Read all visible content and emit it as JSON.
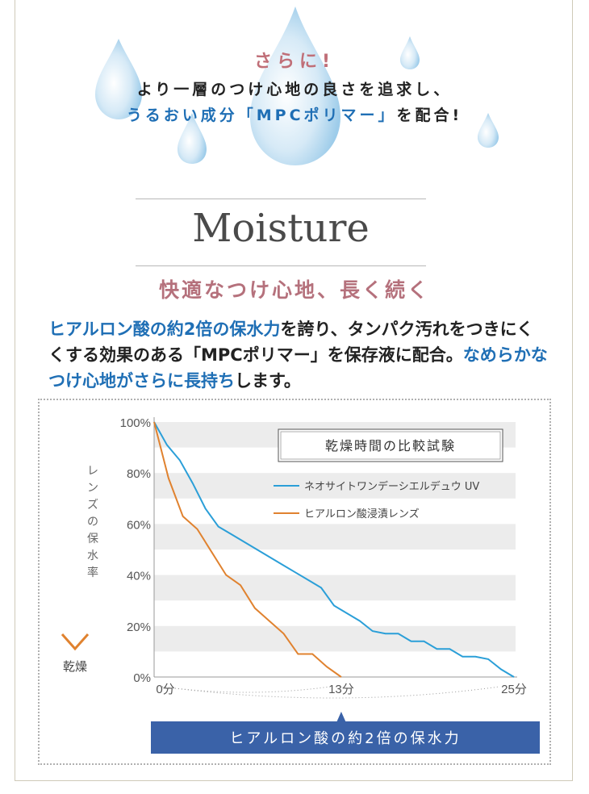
{
  "intro": {
    "accent": "さらに!",
    "line1": "より一層のつけ心地の良さを追求し、",
    "line2_blue": "うるおい成分「MPCポリマー」",
    "line2_rest": "を配合!"
  },
  "section": {
    "heading": "Moisture",
    "subheading": "快適なつけ心地、長く続く"
  },
  "body": {
    "seg1_blue": "ヒアルロン酸の約2倍の保水力",
    "seg2": "を誇り、タンパク汚れをつきにくくする効果のある「MPCポリマー」を保存液に配合。",
    "seg3_blue": "なめらかなつけ心地がさらに長持ち",
    "seg4": "します。"
  },
  "chart_data": {
    "type": "line",
    "title": "乾燥時間の比較試験",
    "ylabel": "レンズの保水率",
    "ylabel_bottom": "乾燥",
    "ylim": [
      0,
      100
    ],
    "yticks": [
      "0%",
      "20%",
      "40%",
      "60%",
      "80%",
      "100%"
    ],
    "xlim": [
      0,
      25
    ],
    "xticks": [
      {
        "x": 0,
        "label": "0分"
      },
      {
        "x": 13,
        "label": "13分"
      },
      {
        "x": 25,
        "label": "25分"
      }
    ],
    "grid_bands": true,
    "legend_position": "top-right",
    "series": [
      {
        "name": "ネオサイトワンデーシエルデュウ UV",
        "color": "#2b9fd8",
        "points": [
          [
            0,
            100
          ],
          [
            1,
            91
          ],
          [
            2,
            85
          ],
          [
            3,
            76
          ],
          [
            4,
            66
          ],
          [
            5,
            59
          ],
          [
            6,
            56
          ],
          [
            7,
            53
          ],
          [
            8,
            50
          ],
          [
            9,
            47
          ],
          [
            10,
            44
          ],
          [
            11,
            41
          ],
          [
            12,
            38
          ],
          [
            13,
            35
          ],
          [
            14,
            28
          ],
          [
            15,
            25
          ],
          [
            16,
            22
          ],
          [
            17,
            18
          ],
          [
            18,
            17
          ],
          [
            19,
            17
          ],
          [
            20,
            14
          ],
          [
            21,
            14
          ],
          [
            22,
            11
          ],
          [
            23,
            11
          ],
          [
            24,
            8
          ],
          [
            25,
            8
          ],
          [
            26,
            7
          ],
          [
            27,
            3
          ],
          [
            28,
            0
          ]
        ]
      },
      {
        "name": "ヒアルロン酸浸漬レンズ",
        "color": "#e0822f",
        "points": [
          [
            0,
            100
          ],
          [
            1,
            78
          ],
          [
            2,
            63
          ],
          [
            3,
            58
          ],
          [
            4,
            49
          ],
          [
            5,
            40
          ],
          [
            6,
            36
          ],
          [
            7,
            27
          ],
          [
            8,
            22
          ],
          [
            9,
            17
          ],
          [
            10,
            9
          ],
          [
            11,
            9
          ],
          [
            12,
            4
          ],
          [
            13,
            0
          ]
        ]
      }
    ],
    "callout": "ヒアルロン酸の約2倍の保水力"
  },
  "colors": {
    "accent_pink": "#c06f78",
    "blue_text": "#1f6fb5",
    "callout_bg": "#3a62a8",
    "band": "#ececec"
  }
}
